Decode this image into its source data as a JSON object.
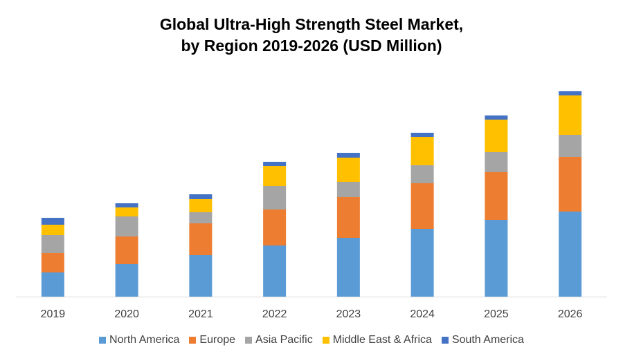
{
  "chart_data": {
    "type": "bar",
    "stacked": true,
    "title": "Global Ultra-High Strength Steel Market, by Region 2019-2026 (USD Million)",
    "title_lines": [
      "Global Ultra-High Strength Steel Market,",
      "by Region 2019-2026 (USD Million)"
    ],
    "xlabel": "",
    "ylabel": "",
    "y_axis_shown": false,
    "grid": false,
    "legend_position": "bottom",
    "ylim": [
      0,
      310
    ],
    "categories": [
      "2019",
      "2020",
      "2021",
      "2022",
      "2023",
      "2024",
      "2025",
      "2026"
    ],
    "series": [
      {
        "name": "North America",
        "color": "#5B9BD5",
        "values": [
          35,
          47,
          60,
          74,
          85,
          98,
          111,
          123
        ]
      },
      {
        "name": "Europe",
        "color": "#ED7D31",
        "values": [
          28,
          40,
          46,
          52,
          59,
          66,
          69,
          79
        ]
      },
      {
        "name": "Asia Pacific",
        "color": "#A5A5A5",
        "values": [
          26,
          29,
          16,
          34,
          22,
          26,
          29,
          32
        ]
      },
      {
        "name": "Middle East & Africa",
        "color": "#FFC000",
        "values": [
          15,
          13,
          19,
          29,
          35,
          41,
          47,
          57
        ]
      },
      {
        "name": "South America",
        "color": "#4472C4",
        "values": [
          10,
          6,
          7,
          6,
          7,
          6,
          6,
          6
        ]
      }
    ]
  }
}
